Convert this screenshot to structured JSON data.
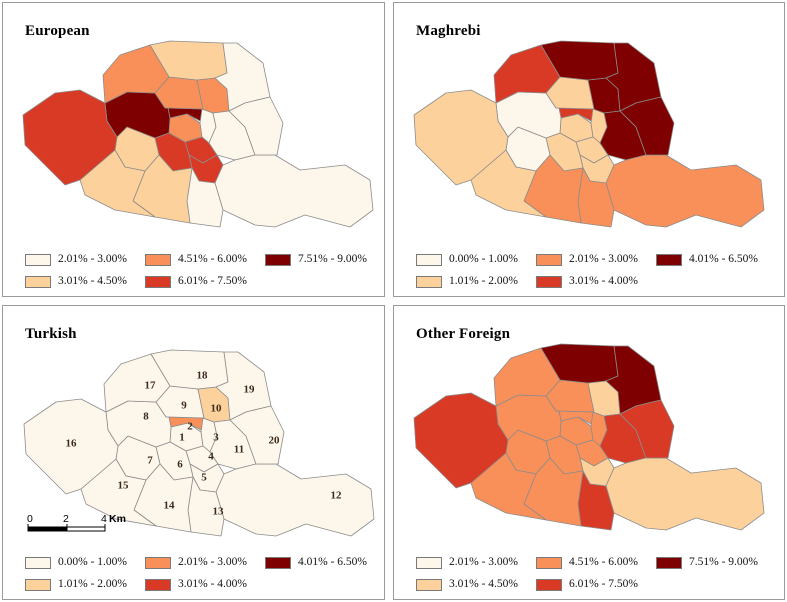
{
  "colors": {
    "c1": "#fdf6ea",
    "c2": "#fdd19c",
    "c3": "#f99059",
    "c4": "#d93a26",
    "c5": "#7e0000"
  },
  "panels": [
    {
      "title": "European",
      "fills": [
        "c3",
        "c5",
        "c1",
        "c4",
        "c4",
        "c4",
        "c2",
        "c5",
        "c3",
        "c3",
        "c1",
        "c1",
        "c1",
        "c2",
        "c2",
        "c4",
        "c3",
        "c2",
        "c1",
        "c1"
      ],
      "legend": [
        {
          "label": "2.01% - 3.00%",
          "color": "c1"
        },
        {
          "label": "3.01% - 4.50%",
          "color": "c2"
        },
        {
          "label": "4.51% - 6.00%",
          "color": "c3"
        },
        {
          "label": "6.01% - 7.50%",
          "color": "c4"
        },
        {
          "label": "7.51% - 9.00%",
          "color": "c5"
        }
      ]
    },
    {
      "title": "Maghrebi",
      "fills": [
        "c2",
        "c4",
        "c2",
        "c2",
        "c2",
        "c2",
        "c1",
        "c1",
        "c2",
        "c5",
        "c5",
        "c3",
        "c3",
        "c3",
        "c2",
        "c2",
        "c4",
        "c5",
        "c5",
        "c5"
      ],
      "legend": [
        {
          "label": "0.00% - 1.00%",
          "color": "c1"
        },
        {
          "label": "1.01% - 2.00%",
          "color": "c2"
        },
        {
          "label": "2.01% - 3.00%",
          "color": "c3"
        },
        {
          "label": "3.01% - 4.00%",
          "color": "c4"
        },
        {
          "label": "4.01% - 6.50%",
          "color": "c5"
        }
      ]
    },
    {
      "title": "Turkish",
      "fills": [
        "c1",
        "c3",
        "c1",
        "c1",
        "c1",
        "c1",
        "c1",
        "c1",
        "c1",
        "c2",
        "c1",
        "c1",
        "c1",
        "c1",
        "c1",
        "c1",
        "c1",
        "c1",
        "c1",
        "c1"
      ],
      "legend": [
        {
          "label": "0.00% - 1.00%",
          "color": "c1"
        },
        {
          "label": "1.01% - 2.00%",
          "color": "c2"
        },
        {
          "label": "2.01% - 3.00%",
          "color": "c3"
        },
        {
          "label": "3.01% - 4.00%",
          "color": "c4"
        },
        {
          "label": "4.01% - 6.50%",
          "color": "c5"
        }
      ],
      "scale": {
        "ticks": [
          "0",
          "2",
          "4"
        ],
        "unit": "Km"
      }
    },
    {
      "title": "Other Foreign",
      "fills": [
        "c3",
        "c3",
        "c3",
        "c3",
        "c2",
        "c3",
        "c3",
        "c3",
        "c3",
        "c2",
        "c4",
        "c2",
        "c4",
        "c3",
        "c3",
        "c4",
        "c3",
        "c5",
        "c5",
        "c4"
      ],
      "legend": [
        {
          "label": "2.01% - 3.00%",
          "color": "c1"
        },
        {
          "label": "3.01% - 4.50%",
          "color": "c2"
        },
        {
          "label": "4.51% - 6.00%",
          "color": "c3"
        },
        {
          "label": "6.01% - 7.50%",
          "color": "c4"
        },
        {
          "label": "7.51% - 9.00%",
          "color": "c5"
        }
      ]
    }
  ],
  "arrondissement_labels": [
    "1",
    "2",
    "3",
    "4",
    "5",
    "6",
    "7",
    "8",
    "9",
    "10",
    "11",
    "12",
    "13",
    "14",
    "15",
    "16",
    "17",
    "18",
    "19",
    "20"
  ]
}
